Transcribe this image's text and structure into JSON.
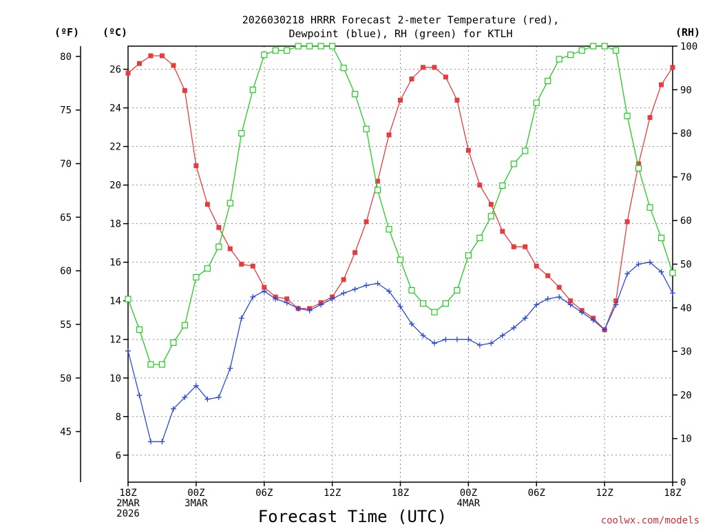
{
  "chart_data": {
    "type": "line",
    "title_line1": "2026030218 HRRR Forecast 2-meter Temperature (red),",
    "title_line2": "Dewpoint (blue), RH (green) for KTLH",
    "xlabel": "Forecast Time (UTC)",
    "watermark": "coolwx.com/models",
    "left_outer_axis": {
      "unit": "(ºF)",
      "ticks": [
        45,
        50,
        55,
        60,
        65,
        70,
        75,
        80
      ],
      "tick_labels": [
        "45",
        "50",
        "55",
        "60",
        "65",
        "70",
        "75",
        "80"
      ]
    },
    "left_axis": {
      "unit": "(ºC)",
      "ylim": [
        4.6,
        27.2
      ],
      "ticks": [
        6,
        8,
        10,
        12,
        14,
        16,
        18,
        20,
        22,
        24,
        26
      ],
      "tick_labels": [
        "6",
        "8",
        "10",
        "12",
        "14",
        "16",
        "18",
        "20",
        "22",
        "24",
        "26"
      ]
    },
    "right_axis": {
      "unit": "(RH)",
      "ylim": [
        0,
        100
      ],
      "ticks": [
        0,
        10,
        20,
        30,
        40,
        50,
        60,
        70,
        80,
        90,
        100
      ],
      "tick_labels": [
        "0",
        "10",
        "20",
        "30",
        "40",
        "50",
        "60",
        "70",
        "80",
        "90",
        "100"
      ]
    },
    "x_range_hours": [
      0,
      48
    ],
    "x_ticks": [
      {
        "hour": 0,
        "l1": "18Z",
        "l2": "2MAR",
        "l3": "2026"
      },
      {
        "hour": 6,
        "l1": "00Z",
        "l2": "3MAR",
        "l3": ""
      },
      {
        "hour": 12,
        "l1": "06Z",
        "l2": "",
        "l3": ""
      },
      {
        "hour": 18,
        "l1": "12Z",
        "l2": "",
        "l3": ""
      },
      {
        "hour": 24,
        "l1": "18Z",
        "l2": "",
        "l3": ""
      },
      {
        "hour": 30,
        "l1": "00Z",
        "l2": "4MAR",
        "l3": ""
      },
      {
        "hour": 36,
        "l1": "06Z",
        "l2": "",
        "l3": ""
      },
      {
        "hour": 42,
        "l1": "12Z",
        "l2": "",
        "l3": ""
      },
      {
        "hour": 48,
        "l1": "18Z",
        "l2": "",
        "l3": ""
      }
    ],
    "series": [
      {
        "name": "Temperature",
        "unit": "C",
        "color": "#e83c3c",
        "marker": "filled-square",
        "values": [
          25.8,
          26.3,
          26.7,
          26.7,
          26.2,
          24.9,
          21.0,
          19.0,
          17.8,
          16.7,
          15.9,
          15.8,
          14.7,
          14.2,
          14.1,
          13.6,
          13.6,
          13.9,
          14.2,
          15.1,
          16.5,
          18.1,
          20.2,
          22.6,
          24.4,
          25.5,
          26.1,
          26.1,
          25.6,
          24.4,
          21.8,
          20.0,
          19.0,
          17.6,
          16.8,
          16.8,
          15.8,
          15.3,
          14.7,
          14.0,
          13.5,
          13.1,
          12.5,
          14.0,
          18.1,
          21.1,
          23.5,
          25.2,
          26.1
        ]
      },
      {
        "name": "Dewpoint",
        "unit": "C",
        "color": "#2848d8",
        "marker": "plus",
        "values": [
          11.4,
          9.1,
          6.7,
          6.7,
          8.4,
          9.0,
          9.6,
          8.9,
          9.0,
          10.5,
          13.1,
          14.2,
          14.5,
          14.1,
          13.9,
          13.6,
          13.5,
          13.8,
          14.1,
          14.4,
          14.6,
          14.8,
          14.9,
          14.5,
          13.7,
          12.8,
          12.2,
          11.8,
          12.0,
          12.0,
          12.0,
          11.7,
          11.8,
          12.2,
          12.6,
          13.1,
          13.8,
          14.1,
          14.2,
          13.8,
          13.4,
          13.0,
          12.5,
          13.8,
          15.4,
          15.9,
          16.0,
          15.5,
          14.4
        ]
      },
      {
        "name": "RH",
        "unit": "%",
        "color": "#20cc20",
        "marker": "open-square",
        "values": [
          42,
          35,
          27,
          27,
          32,
          36,
          47,
          49,
          54,
          64,
          80,
          90,
          98,
          99,
          99,
          100,
          100,
          100,
          100,
          95,
          89,
          81,
          67,
          58,
          51,
          44,
          41,
          39,
          41,
          44,
          52,
          56,
          61,
          68,
          73,
          76,
          87,
          92,
          97,
          98,
          99,
          100,
          100,
          99,
          84,
          72,
          63,
          56,
          48
        ]
      }
    ]
  }
}
